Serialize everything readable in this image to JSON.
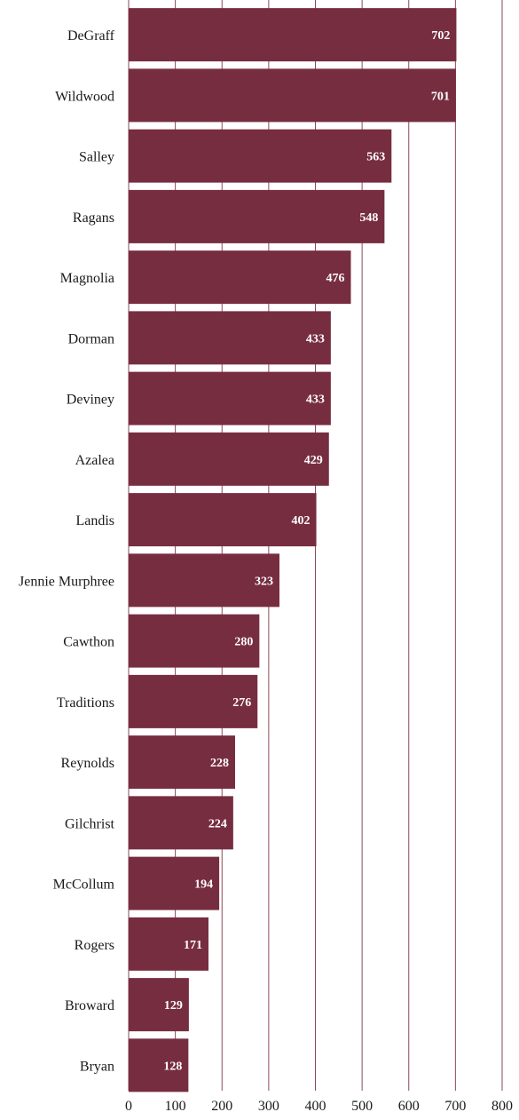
{
  "chart_data": {
    "type": "bar",
    "orientation": "horizontal",
    "title": "",
    "xlabel": "",
    "ylabel": "",
    "categories": [
      "DeGraff",
      "Wildwood",
      "Salley",
      "Ragans",
      "Magnolia",
      "Dorman",
      "Deviney",
      "Azalea",
      "Landis",
      "Jennie Murphree",
      "Cawthon",
      "Traditions",
      "Reynolds",
      "Gilchrist",
      "McCollum",
      "Rogers",
      "Broward",
      "Bryan"
    ],
    "values": [
      702,
      701,
      563,
      548,
      476,
      433,
      433,
      429,
      402,
      323,
      280,
      276,
      228,
      224,
      194,
      171,
      129,
      128
    ],
    "xlim": [
      0,
      800
    ],
    "xticks": [
      0,
      100,
      200,
      300,
      400,
      500,
      600,
      700,
      800
    ],
    "grid": "vertical",
    "data_labels": "inside-end",
    "colors": {
      "bar": "#772d40",
      "grid": "#8a4a5a",
      "value_text": "#ffffff",
      "label_text": "#1a1a1a"
    }
  }
}
